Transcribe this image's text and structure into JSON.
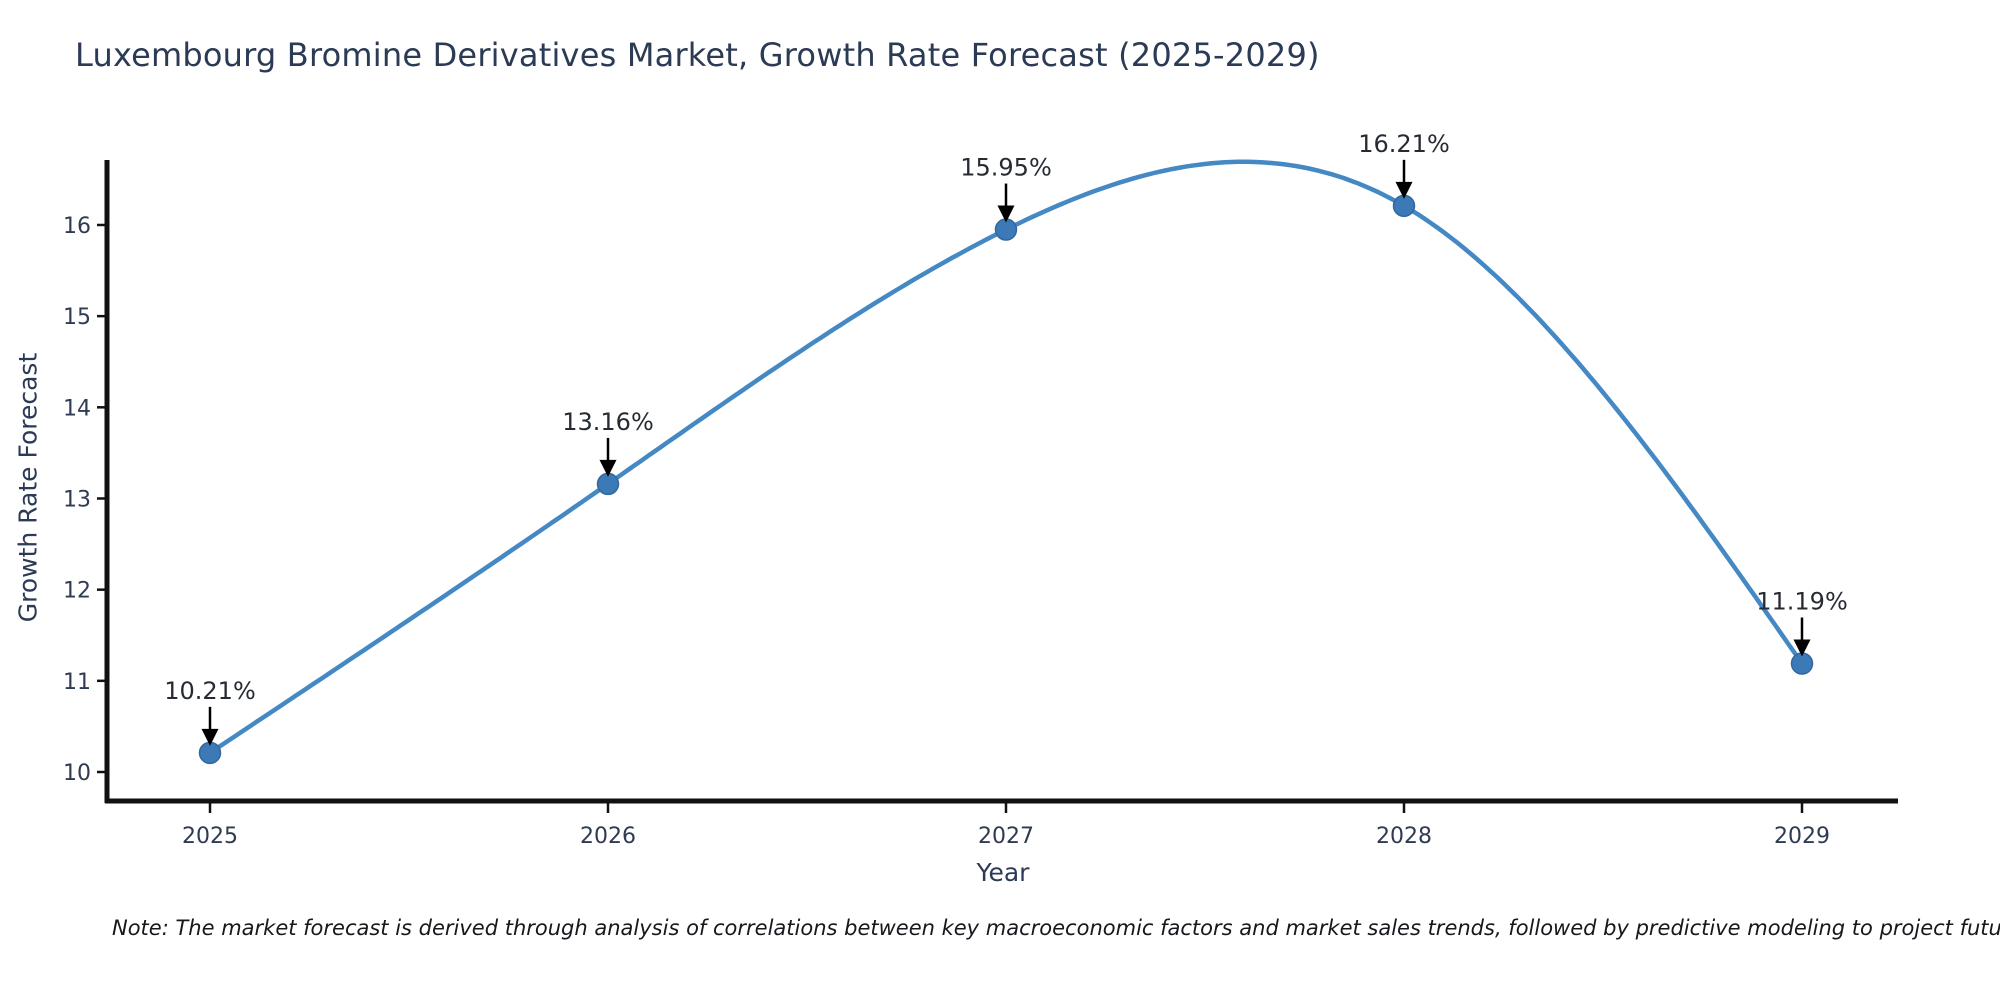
{
  "title": "Luxembourg Bromine Derivatives Market, Growth Rate Forecast (2025-2029)",
  "note": "Note: The market forecast is derived through analysis of correlations between key macroeconomic factors and market sales trends, followed by predictive modeling to project future sales",
  "chart_data": {
    "type": "line",
    "title": "Luxembourg Bromine Derivatives Market, Growth Rate Forecast (2025-2029)",
    "xlabel": "Year",
    "ylabel": "Growth Rate Forecast",
    "categories": [
      "2025",
      "2026",
      "2027",
      "2028",
      "2029"
    ],
    "x": [
      2025,
      2026,
      2027,
      2028,
      2029
    ],
    "values": [
      10.21,
      13.16,
      15.95,
      16.21,
      11.19
    ],
    "point_labels": [
      "10.21%",
      "13.16%",
      "15.95%",
      "16.21%",
      "11.19%"
    ],
    "yticks": [
      10,
      11,
      12,
      13,
      14,
      15,
      16
    ],
    "ylim": [
      9.7,
      16.7
    ],
    "grid": false,
    "legend": "none",
    "smoothing": "cubic-spline",
    "colors": {
      "line": "#4488c4",
      "marker": "#3b7ab6",
      "marker_edge": "#33679e",
      "axis": "#111111",
      "annotation_arrow": "#000000",
      "title_text": "#2b3a55",
      "tick_text": "#2f3b52"
    }
  }
}
